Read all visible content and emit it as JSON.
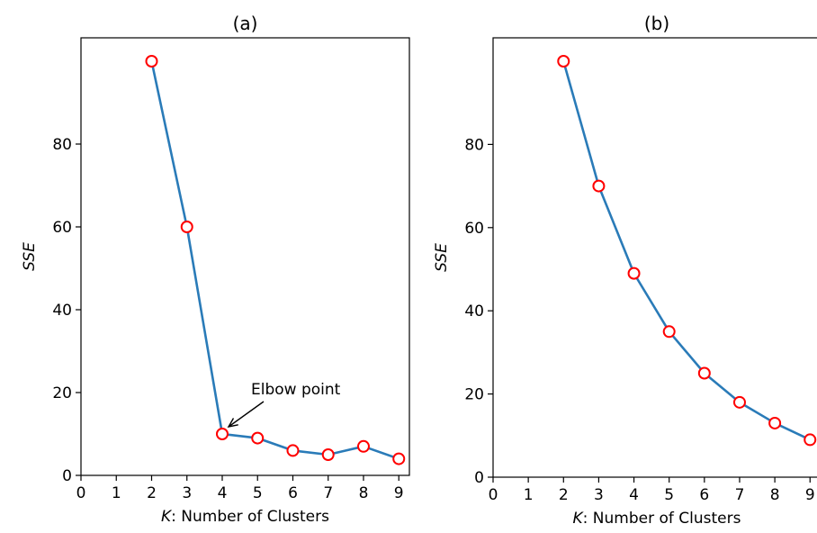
{
  "chart_data": [
    {
      "type": "line",
      "title": "(a)",
      "xlabel_var": "K",
      "xlabel_rest": ": Number of Clusters",
      "ylabel": "SSE",
      "xlim": [
        0,
        9.3
      ],
      "ylim": [
        0,
        100
      ],
      "xticks": [
        0,
        1,
        2,
        3,
        4,
        5,
        6,
        7,
        8,
        9
      ],
      "yticks": [
        0,
        20,
        40,
        60,
        80
      ],
      "x": [
        2,
        3,
        4,
        5,
        6,
        7,
        8,
        9
      ],
      "y": [
        100,
        60,
        10,
        9,
        6,
        5,
        7,
        4
      ],
      "line_color": "#2a7bb8",
      "marker_edge_color": "#ff0000",
      "marker_face_color": "#ffffff",
      "annotation": {
        "text": "Elbow point",
        "x": 4,
        "y": 10
      }
    },
    {
      "type": "line",
      "title": "(b)",
      "xlabel_var": "K",
      "xlabel_rest": ": Number of Clusters",
      "ylabel": "SSE",
      "xlim": [
        0,
        9.3
      ],
      "ylim": [
        0,
        100
      ],
      "xticks": [
        0,
        1,
        2,
        3,
        4,
        5,
        6,
        7,
        8,
        9
      ],
      "yticks": [
        0,
        20,
        40,
        60,
        80
      ],
      "x": [
        2,
        3,
        4,
        5,
        6,
        7,
        8,
        9
      ],
      "y": [
        100,
        70,
        49,
        35,
        25,
        18,
        13,
        9
      ],
      "line_color": "#2a7bb8",
      "marker_edge_color": "#ff0000",
      "marker_face_color": "#ffffff"
    }
  ]
}
